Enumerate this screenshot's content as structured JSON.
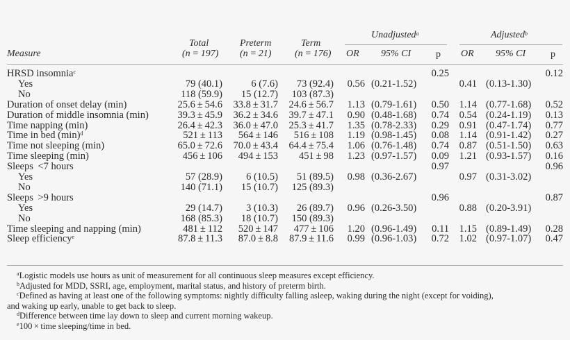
{
  "header": {
    "measure": "Measure",
    "total": "Total",
    "total_n": "(n = 197)",
    "preterm": "Preterm",
    "preterm_n": "(n = 21)",
    "term": "Term",
    "term_n": "(n = 176)",
    "unadjusted": "Unadjusted",
    "unadjusted_sup": "a",
    "adjusted": "Adjusted",
    "adjusted_sup": "b",
    "or": "OR",
    "ci": "95% CI",
    "p": "p",
    "or2": "OR",
    "ci2": "95% CI",
    "p2": "p"
  },
  "rows": [
    {
      "measure": "HRSD insomnia",
      "sup": "c",
      "indent": false,
      "total": "",
      "preterm": "",
      "term": "",
      "u_or": "",
      "u_ci": "",
      "u_p": "0.25",
      "a_or": "",
      "a_ci": "",
      "a_p": "0.12"
    },
    {
      "measure": "Yes",
      "sup": "",
      "indent": true,
      "total": "79 (40.1)",
      "preterm": "6 (7.6)",
      "term": "73 (92.4)",
      "u_or": "0.56",
      "u_ci": "(0.21-1.52)",
      "u_p": "",
      "a_or": "0.41",
      "a_ci": "(0.13-1.30)",
      "a_p": ""
    },
    {
      "measure": "No",
      "sup": "",
      "indent": true,
      "total": "118 (59.9)",
      "preterm": "15 (12.7)",
      "term": "103 (87.3)",
      "u_or": "",
      "u_ci": "",
      "u_p": "",
      "a_or": "",
      "a_ci": "",
      "a_p": ""
    },
    {
      "measure": "Duration of onset delay (min)",
      "sup": "",
      "indent": false,
      "total": "25.6 ± 54.6",
      "preterm": "33.8 ± 31.7",
      "term": "24.6 ± 56.7",
      "u_or": "1.13",
      "u_ci": "(0.79-1.61)",
      "u_p": "0.50",
      "a_or": "1.14",
      "a_ci": "(0.77-1.68)",
      "a_p": "0.52"
    },
    {
      "measure": "Duration of middle insomnia (min)",
      "sup": "",
      "indent": false,
      "total": "39.3 ± 45.9",
      "preterm": "36.2 ± 34.6",
      "term": "39.7 ± 47.1",
      "u_or": "0.90",
      "u_ci": "(0.48-1.68)",
      "u_p": "0.74",
      "a_or": "0.54",
      "a_ci": "(0.24-1.19)",
      "a_p": "0.13"
    },
    {
      "measure": "Time napping (min)",
      "sup": "",
      "indent": false,
      "total": "26.4 ± 42.3",
      "preterm": "36.0 ± 47.0",
      "term": "25.3 ± 41.7",
      "u_or": "1.35",
      "u_ci": "(0.78-2.33)",
      "u_p": "0.29",
      "a_or": "0.91",
      "a_ci": "(0.47-1.74)",
      "a_p": "0.77"
    },
    {
      "measure": "Time in bed (min)",
      "sup": "d",
      "indent": false,
      "total": "521 ± 113",
      "preterm": "564 ± 146",
      "term": "516 ± 108",
      "u_or": "1.19",
      "u_ci": "(0.98-1.45)",
      "u_p": "0.08",
      "a_or": "1.14",
      "a_ci": "(0.91-1.42)",
      "a_p": "0.27"
    },
    {
      "measure": "Time not sleeping (min)",
      "sup": "",
      "indent": false,
      "total": "65.0 ± 72.6",
      "preterm": "70.0 ± 43.4",
      "term": "64.4 ± 75.4",
      "u_or": "1.06",
      "u_ci": "(0.76-1.48)",
      "u_p": "0.74",
      "a_or": "0.87",
      "a_ci": "(0.51-1.50)",
      "a_p": "0.63"
    },
    {
      "measure": "Time sleeping (min)",
      "sup": "",
      "indent": false,
      "total": "456 ± 106",
      "preterm": "494 ± 153",
      "term": "451 ± 98",
      "u_or": "1.23",
      "u_ci": "(0.97-1.57)",
      "u_p": "0.09",
      "a_or": "1.21",
      "a_ci": "(0.93-1.57)",
      "a_p": "0.16"
    },
    {
      "measure": "Sleeps  <7 hours",
      "sup": "",
      "indent": false,
      "total": "",
      "preterm": "",
      "term": "",
      "u_or": "",
      "u_ci": "",
      "u_p": "0.97",
      "a_or": "",
      "a_ci": "",
      "a_p": "0.96"
    },
    {
      "measure": "Yes",
      "sup": "",
      "indent": true,
      "total": "57 (28.9)",
      "preterm": "6 (10.5)",
      "term": "51 (89.5)",
      "u_or": "0.98",
      "u_ci": "(0.36-2.67)",
      "u_p": "",
      "a_or": "0.97",
      "a_ci": "(0.31-3.02)",
      "a_p": ""
    },
    {
      "measure": "No",
      "sup": "",
      "indent": true,
      "total": "140 (71.1)",
      "preterm": "15 (10.7)",
      "term": "125 (89.3)",
      "u_or": "",
      "u_ci": "",
      "u_p": "",
      "a_or": "",
      "a_ci": "",
      "a_p": ""
    },
    {
      "measure": "Sleeps  >9 hours",
      "sup": "",
      "indent": false,
      "total": "",
      "preterm": "",
      "term": "",
      "u_or": "",
      "u_ci": "",
      "u_p": "0.96",
      "a_or": "",
      "a_ci": "",
      "a_p": "0.87"
    },
    {
      "measure": "Yes",
      "sup": "",
      "indent": true,
      "total": "29 (14.7)",
      "preterm": "3 (10.3)",
      "term": "26 (89.7)",
      "u_or": "0.96",
      "u_ci": "(0.26-3.50)",
      "u_p": "",
      "a_or": "0.88",
      "a_ci": "(0.20-3.91)",
      "a_p": ""
    },
    {
      "measure": "No",
      "sup": "",
      "indent": true,
      "total": "168 (85.3)",
      "preterm": "18 (10.7)",
      "term": "150 (89.3)",
      "u_or": "",
      "u_ci": "",
      "u_p": "",
      "a_or": "",
      "a_ci": "",
      "a_p": ""
    },
    {
      "measure": "Time sleeping and napping (min)",
      "sup": "",
      "indent": false,
      "total": "481 ± 112",
      "preterm": "520 ± 147",
      "term": "477 ± 106",
      "u_or": "1.20",
      "u_ci": "(0.96-1.49)",
      "u_p": "0.11",
      "a_or": "1.15",
      "a_ci": "(0.89-1.49)",
      "a_p": "0.28"
    },
    {
      "measure": "Sleep efficiency",
      "sup": "e",
      "indent": false,
      "total": "87.8 ± 11.3",
      "preterm": "87.0 ± 8.8",
      "term": "87.9 ± 11.6",
      "u_or": "0.99",
      "u_ci": "(0.96-1.03)",
      "u_p": "0.72",
      "a_or": "1.02",
      "a_ci": "(0.97-1.07)",
      "a_p": "0.47"
    }
  ],
  "footnotes": [
    {
      "mark": "a",
      "text": "Logistic models use hours as unit of measurement for all continuous sleep measures except efficiency."
    },
    {
      "mark": "b",
      "text": "Adjusted for MDD, SSRI, age, employment, marital status, and history of preterm birth."
    },
    {
      "mark": "c",
      "text": "Defined as having at least one of the following symptoms: nightly difficulty falling asleep, waking during the night (except for voiding),"
    },
    {
      "mark": "",
      "text": "and waking up early, unable to get back to sleep."
    },
    {
      "mark": "d",
      "text": "Difference between time lay down to sleep and current morning wakeup."
    },
    {
      "mark": "e",
      "text": "100 × time sleeping/time in bed."
    }
  ]
}
